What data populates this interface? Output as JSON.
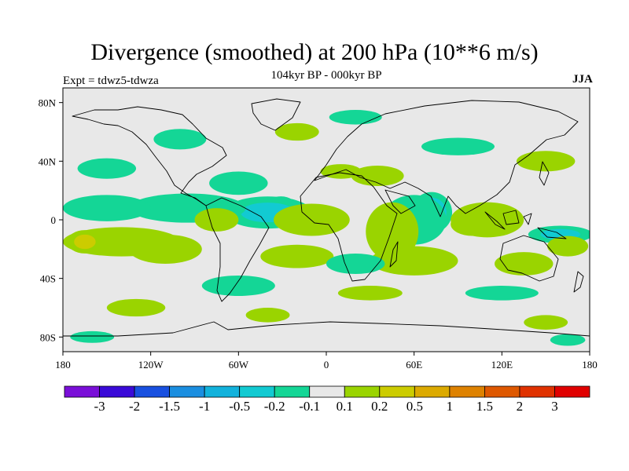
{
  "title": "Divergence (smoothed) at 200 hPa (10**6 m/s)",
  "subtitle": "104kyr BP - 000kyr BP",
  "experiment": "Expt = tdwz5-tdwza",
  "season": "JJA",
  "map": {
    "projection": "cylindrical-equidistant",
    "lon_range": [
      -180,
      180
    ],
    "lat_range": [
      -90,
      90
    ],
    "background_color": "#e8e8e8",
    "lat_ticks": [
      {
        "lat": 80,
        "label": "80N"
      },
      {
        "lat": 40,
        "label": "40N"
      },
      {
        "lat": 0,
        "label": "0"
      },
      {
        "lat": -40,
        "label": "40S"
      },
      {
        "lat": -80,
        "label": "80S"
      }
    ],
    "lon_ticks": [
      {
        "lon": -180,
        "label": "180"
      },
      {
        "lon": -120,
        "label": "120W"
      },
      {
        "lon": -60,
        "label": "60W"
      },
      {
        "lon": 0,
        "label": "0"
      },
      {
        "lon": 60,
        "label": "60E"
      },
      {
        "lon": 120,
        "label": "120E"
      },
      {
        "lon": 180,
        "label": "180"
      }
    ],
    "features": [
      {
        "lon": -31,
        "lat": 8,
        "level": -4,
        "rx": 11,
        "ry": 8
      },
      {
        "lon": -40,
        "lat": 5,
        "level": -2,
        "rx": 30,
        "ry": 11
      },
      {
        "lon": -95,
        "lat": 8,
        "level": -1,
        "rx": 40,
        "ry": 10
      },
      {
        "lon": -150,
        "lat": 8,
        "level": -1,
        "rx": 30,
        "ry": 9
      },
      {
        "lon": -10,
        "lat": 0,
        "level": 3,
        "rx": 12,
        "ry": 6
      },
      {
        "lon": -10,
        "lat": 0,
        "level": 1,
        "rx": 26,
        "ry": 11
      },
      {
        "lon": 72,
        "lat": 5,
        "level": -5,
        "rx": 7,
        "ry": 9
      },
      {
        "lon": 72,
        "lat": 5,
        "level": -3,
        "rx": 14,
        "ry": 14
      },
      {
        "lon": 60,
        "lat": 0,
        "level": -1,
        "rx": 22,
        "ry": 17
      },
      {
        "lon": 48,
        "lat": -5,
        "level": 2,
        "rx": 12,
        "ry": 14
      },
      {
        "lon": 45,
        "lat": -8,
        "level": 1,
        "rx": 18,
        "ry": 20
      },
      {
        "lon": 100,
        "lat": -3,
        "level": 2,
        "rx": 15,
        "ry": 8
      },
      {
        "lon": 110,
        "lat": 0,
        "level": 1,
        "rx": 25,
        "ry": 12
      },
      {
        "lon": 160,
        "lat": -10,
        "level": -2,
        "rx": 22,
        "ry": 6
      },
      {
        "lon": 165,
        "lat": -18,
        "level": 1,
        "rx": 14,
        "ry": 7
      },
      {
        "lon": -140,
        "lat": -15,
        "level": 1,
        "rx": 40,
        "ry": 10
      },
      {
        "lon": -165,
        "lat": -15,
        "level": 2,
        "rx": 12,
        "ry": 8
      },
      {
        "lon": -110,
        "lat": -20,
        "level": 1,
        "rx": 25,
        "ry": 10
      },
      {
        "lon": -75,
        "lat": 0,
        "level": 1,
        "rx": 15,
        "ry": 8
      },
      {
        "lon": -20,
        "lat": -25,
        "level": 1,
        "rx": 25,
        "ry": 8
      },
      {
        "lon": 60,
        "lat": -28,
        "level": 1,
        "rx": 30,
        "ry": 10
      },
      {
        "lon": 20,
        "lat": -30,
        "level": -1,
        "rx": 20,
        "ry": 7
      },
      {
        "lon": 135,
        "lat": -30,
        "level": 1,
        "rx": 20,
        "ry": 8
      },
      {
        "lon": -60,
        "lat": 25,
        "level": -1,
        "rx": 20,
        "ry": 8
      },
      {
        "lon": 35,
        "lat": 30,
        "level": 1,
        "rx": 18,
        "ry": 7
      },
      {
        "lon": 10,
        "lat": 33,
        "level": 1,
        "rx": 14,
        "ry": 5
      },
      {
        "lon": -150,
        "lat": 35,
        "level": -1,
        "rx": 20,
        "ry": 7
      },
      {
        "lon": 150,
        "lat": 40,
        "level": 1,
        "rx": 20,
        "ry": 7
      },
      {
        "lon": 90,
        "lat": 50,
        "level": -1,
        "rx": 25,
        "ry": 6
      },
      {
        "lon": -100,
        "lat": 55,
        "level": -1,
        "rx": 18,
        "ry": 7
      },
      {
        "lon": -20,
        "lat": 60,
        "level": 1,
        "rx": 15,
        "ry": 6
      },
      {
        "lon": 20,
        "lat": 70,
        "level": -1,
        "rx": 18,
        "ry": 5
      },
      {
        "lon": -60,
        "lat": -45,
        "level": -1,
        "rx": 25,
        "ry": 7
      },
      {
        "lon": 30,
        "lat": -50,
        "level": 1,
        "rx": 22,
        "ry": 5
      },
      {
        "lon": 120,
        "lat": -50,
        "level": -1,
        "rx": 25,
        "ry": 5
      },
      {
        "lon": -130,
        "lat": -60,
        "level": 1,
        "rx": 20,
        "ry": 6
      },
      {
        "lon": -40,
        "lat": -65,
        "level": 1,
        "rx": 15,
        "ry": 5
      },
      {
        "lon": 150,
        "lat": -70,
        "level": 1,
        "rx": 15,
        "ry": 5
      },
      {
        "lon": -160,
        "lat": -80,
        "level": -1,
        "rx": 15,
        "ry": 4
      },
      {
        "lon": 165,
        "lat": -82,
        "level": -1,
        "rx": 12,
        "ry": 4
      }
    ]
  },
  "colorbar": {
    "colors": [
      "#7a0fd8",
      "#3a0ad8",
      "#1850e0",
      "#1a8ee0",
      "#12b2dc",
      "#12cad2",
      "#14d696",
      "#e8e8e8",
      "#9ad400",
      "#cccc00",
      "#dcaa00",
      "#de8200",
      "#de5800",
      "#e03200",
      "#e00000"
    ],
    "labels": [
      "-3",
      "-2",
      "-1.5",
      "-1",
      "-0.5",
      "-0.2",
      "-0.1",
      "0.1",
      "0.2",
      "0.5",
      "1",
      "1.5",
      "2",
      "3"
    ]
  }
}
